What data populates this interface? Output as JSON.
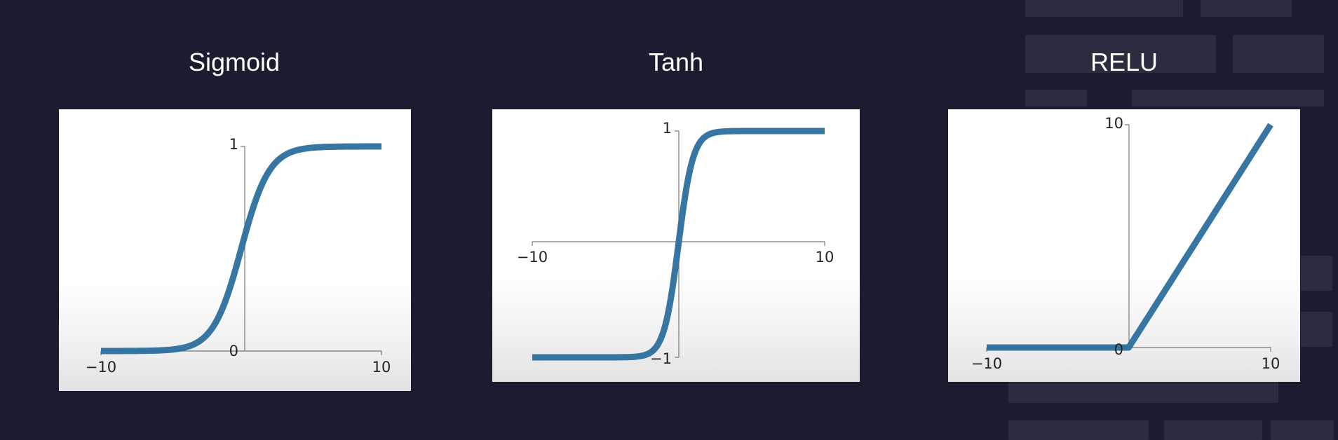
{
  "chart_data": [
    {
      "type": "line",
      "title": "Sigmoid",
      "function": "sigmoid",
      "xlim": [
        -10,
        10
      ],
      "ylim": [
        0,
        1
      ],
      "x_tick_labels": [
        "−10",
        "10"
      ],
      "y_tick_labels": [
        "1",
        "0"
      ],
      "line_color": "#2c6e9e",
      "series": [
        {
          "x": [
            -10,
            -5,
            -3,
            -2,
            -1,
            0,
            1,
            2,
            3,
            5,
            10
          ],
          "y": [
            0.0,
            0.007,
            0.047,
            0.12,
            0.27,
            0.5,
            0.73,
            0.88,
            0.95,
            0.993,
            1.0
          ]
        }
      ]
    },
    {
      "type": "line",
      "title": "Tanh",
      "function": "tanh",
      "xlim": [
        -10,
        10
      ],
      "ylim": [
        -1,
        1
      ],
      "x_tick_labels": [
        "−10",
        "10"
      ],
      "y_tick_labels": [
        "1",
        "−1"
      ],
      "line_color": "#2c6e9e",
      "series": [
        {
          "x": [
            -10,
            -3,
            -2,
            -1,
            0,
            1,
            2,
            3,
            10
          ],
          "y": [
            -1.0,
            -0.995,
            -0.96,
            -0.76,
            0.0,
            0.76,
            0.96,
            0.995,
            1.0
          ]
        }
      ]
    },
    {
      "type": "line",
      "title": "RELU",
      "function": "relu",
      "xlim": [
        -10,
        10
      ],
      "ylim": [
        0,
        10
      ],
      "x_tick_labels": [
        "−10",
        "10"
      ],
      "y_tick_labels": [
        "10",
        "0"
      ],
      "line_color": "#2c6e9e",
      "series": [
        {
          "x": [
            -10,
            0,
            10
          ],
          "y": [
            0,
            0,
            10
          ]
        }
      ]
    }
  ]
}
